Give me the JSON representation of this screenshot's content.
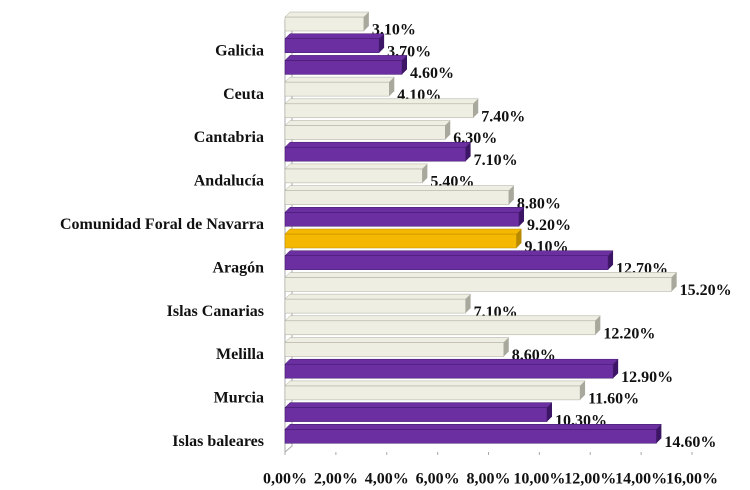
{
  "chart_data": {
    "type": "bar",
    "orientation": "horizontal",
    "categories": [
      null,
      "Galicia",
      null,
      "Ceuta",
      null,
      "Cantabria",
      null,
      "Andalucía",
      null,
      "Comunidad Foral de Navarra",
      null,
      "Aragón",
      null,
      "Islas Canarias",
      null,
      "Melilla",
      null,
      "Murcia",
      null,
      "Islas baleares"
    ],
    "values": [
      3.1,
      3.7,
      4.6,
      4.1,
      7.4,
      6.3,
      7.1,
      5.4,
      8.8,
      9.2,
      9.1,
      12.7,
      15.2,
      7.1,
      12.2,
      8.6,
      12.9,
      11.6,
      10.3,
      14.6
    ],
    "value_labels": [
      "3.10%",
      "3.70%",
      "4.60%",
      "4.10%",
      "7.40%",
      "6.30%",
      "7.10%",
      "5.40%",
      "8.80%",
      "9.20%",
      "9.10%",
      "12.70%",
      "15.20%",
      "7.10%",
      "12.20%",
      "8.60%",
      "12.90%",
      "11.60%",
      "10.30%",
      "14.60%"
    ],
    "colors": [
      "#efeee2",
      "#6b2fa2",
      "#6b2fa2",
      "#efeee2",
      "#efeee2",
      "#efeee2",
      "#6b2fa2",
      "#efeee2",
      "#efeee2",
      "#6b2fa2",
      "#f5b800",
      "#6b2fa2",
      "#efeee2",
      "#efeee2",
      "#efeee2",
      "#efeee2",
      "#6b2fa2",
      "#efeee2",
      "#6b2fa2",
      "#6b2fa2"
    ],
    "xlim": [
      0,
      16
    ],
    "xticks": [
      {
        "value": 0,
        "label": "0,00%"
      },
      {
        "value": 2,
        "label": "2,00%"
      },
      {
        "value": 4,
        "label": "4,00%"
      },
      {
        "value": 6,
        "label": "6,00%"
      },
      {
        "value": 8,
        "label": "8,00%"
      },
      {
        "value": 10,
        "label": "10,00%"
      },
      {
        "value": 12,
        "label": "12,00%"
      },
      {
        "value": 14,
        "label": "14,00%"
      },
      {
        "value": 16,
        "label": "16,00%"
      }
    ],
    "grid": false
  }
}
